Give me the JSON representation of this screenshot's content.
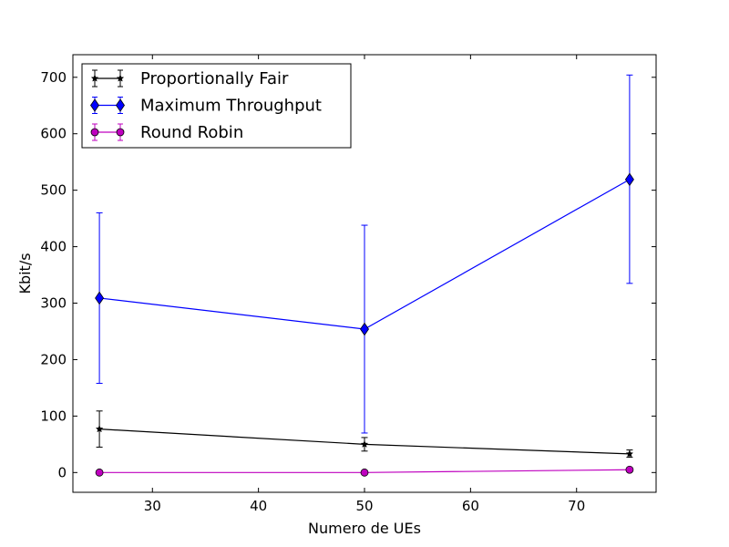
{
  "chart_data": {
    "type": "line",
    "title": "",
    "xlabel": "Numero de UEs",
    "ylabel": "Kbit/s",
    "xlim": [
      22.5,
      77.5
    ],
    "ylim": [
      -35,
      740
    ],
    "xticks": [
      30,
      40,
      50,
      60,
      70
    ],
    "yticks": [
      0,
      100,
      200,
      300,
      400,
      500,
      600,
      700
    ],
    "legend_position": "top-left",
    "x": [
      25,
      50,
      75
    ],
    "series": [
      {
        "name": "Proportionally Fair",
        "color": "#000000",
        "marker": "star",
        "values": [
          77,
          50,
          33
        ],
        "err_low": [
          45,
          38,
          27
        ],
        "err_high": [
          109,
          62,
          40
        ]
      },
      {
        "name": "Maximum Throughput",
        "color": "#0000ff",
        "marker": "diamond",
        "values": [
          309,
          254,
          519
        ],
        "err_low": [
          158,
          70,
          335
        ],
        "err_high": [
          460,
          438,
          704
        ]
      },
      {
        "name": "Round Robin",
        "color": "#bf00bf",
        "marker": "circle",
        "values": [
          0,
          0,
          5
        ],
        "err_low": [
          0,
          0,
          5
        ],
        "err_high": [
          0,
          0,
          5
        ]
      }
    ]
  }
}
